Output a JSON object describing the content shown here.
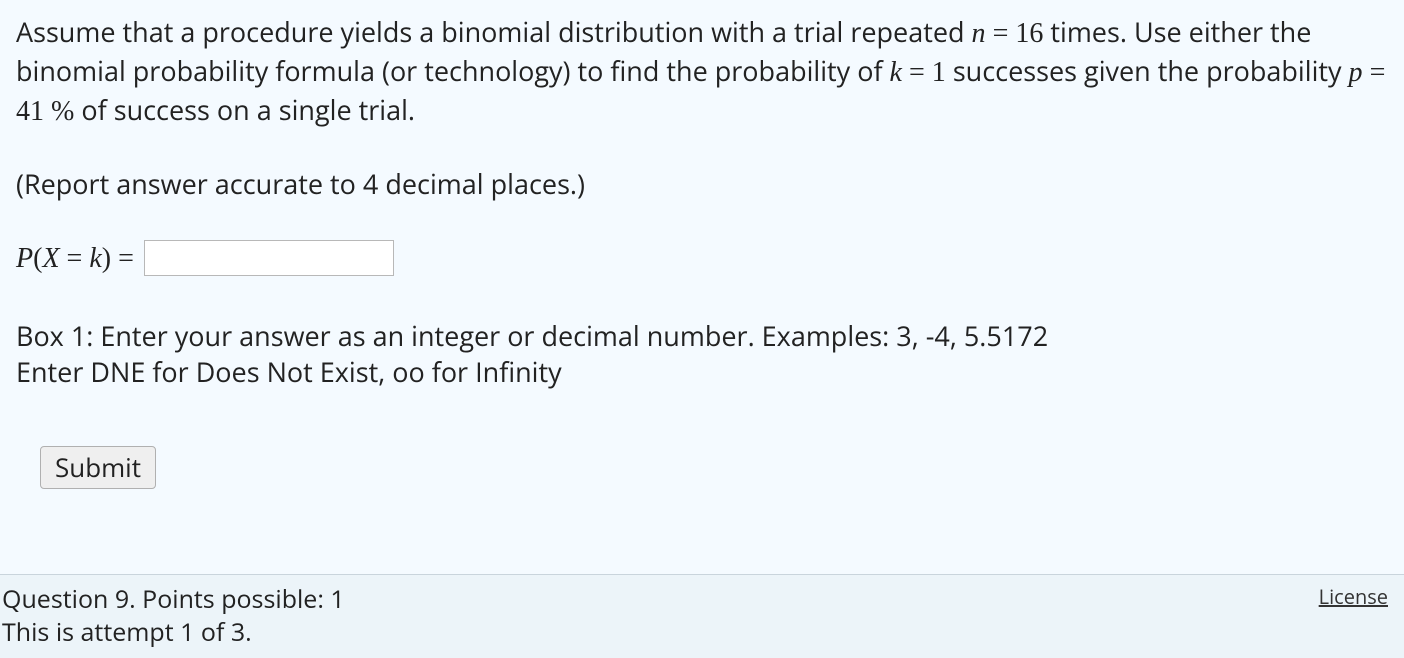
{
  "background_color": "#f4faff",
  "text_color": "#222222",
  "font_size_body": 27,
  "question": {
    "text_part1": "Assume that a procedure yields a binomial distribution with a trial repeated ",
    "n_var": "n",
    "eq": " = ",
    "n_value": "16",
    "text_part2": " times. Use either the binomial probability formula (or technology) to find the probability of ",
    "k_var": "k",
    "k_value": "1",
    "text_part3": " successes given the probability ",
    "p_var": "p",
    "p_value": "41",
    "pct": " %",
    "text_part4": "  of success on a single trial."
  },
  "instruction": "(Report answer accurate to 4 decimal places.)",
  "answer": {
    "lhs_P": "P",
    "lhs_open": "(",
    "lhs_X": "X",
    "lhs_eq": " = ",
    "lhs_k": "k",
    "lhs_close": ")",
    "outer_eq": "  =  ",
    "value": ""
  },
  "hint": {
    "line1": "Box 1: Enter your answer as an integer or decimal number. Examples: 3, -4, 5.5172",
    "line2": "Enter DNE for Does Not Exist, oo for Infinity"
  },
  "submit_label": "Submit",
  "footer": {
    "line1": "Question 9. Points possible: 1",
    "line2": "This is attempt 1 of 3.",
    "license": "License"
  }
}
